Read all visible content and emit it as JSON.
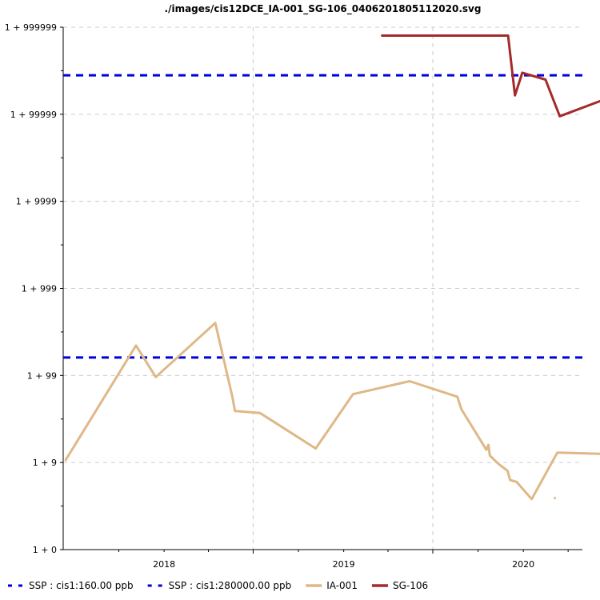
{
  "chart_data": {
    "type": "line",
    "title": "./images/cis12DCE_IA-001_SG-106_0406201805112020.svg",
    "xlabel": "",
    "ylabel": "",
    "xlim": [
      "2017-06-10",
      "2020-04-30"
    ],
    "x_ticks": [
      {
        "value": "2018-01-01",
        "label": "2018"
      },
      {
        "value": "2019-01-01",
        "label": "2019"
      },
      {
        "value": "2020-01-01",
        "label": "2020"
      }
    ],
    "yscale": "log10(1+y)",
    "ylim": [
      0,
      6
    ],
    "y_ticks": [
      {
        "value": 0,
        "label": "1 + 0"
      },
      {
        "value": 1,
        "label": "1 + 9"
      },
      {
        "value": 2,
        "label": "1 + 99"
      },
      {
        "value": 3,
        "label": "1 + 999"
      },
      {
        "value": 4,
        "label": "1 + 9999"
      },
      {
        "value": 5,
        "label": "1 + 99999"
      },
      {
        "value": 6,
        "label": "1 + 999999"
      }
    ],
    "grid": true,
    "legend_position": "bottom",
    "series": [
      {
        "name": "SSP : cis1:160.00 ppb",
        "type": "hline",
        "value": 160,
        "color": "#0000dd",
        "dash": "long-dash"
      },
      {
        "name": "SSP : cis1:280000.00 ppb",
        "type": "hline",
        "value": 280000,
        "color": "#0000dd",
        "dash": "long-dash"
      },
      {
        "name": "IA-001",
        "type": "line",
        "color": "#deb887",
        "points": [
          {
            "x": "2017-06-15",
            "y": 9.7
          },
          {
            "x": "2017-11-05",
            "y": 220
          },
          {
            "x": "2017-12-15",
            "y": 95
          },
          {
            "x": "2018-04-15",
            "y": 400
          },
          {
            "x": "2018-05-20",
            "y": 55
          },
          {
            "x": "2018-05-25",
            "y": 38
          },
          {
            "x": "2018-07-15",
            "y": 36
          },
          {
            "x": "2018-11-05",
            "y": 13.5
          },
          {
            "x": "2019-01-20",
            "y": 60
          },
          {
            "x": "2019-05-15",
            "y": 85
          },
          {
            "x": "2019-08-20",
            "y": 56
          },
          {
            "x": "2019-08-28",
            "y": 40
          },
          {
            "x": "2019-10-18",
            "y": 13
          },
          {
            "x": "2019-10-22",
            "y": 15
          },
          {
            "x": "2019-10-25",
            "y": 11
          },
          {
            "x": "2019-11-10",
            "y": 8.8
          },
          {
            "x": "2019-11-30",
            "y": 7
          },
          {
            "x": "2019-12-05",
            "y": 5.3
          },
          {
            "x": "2019-12-18",
            "y": 5
          },
          {
            "x": "2020-01-18",
            "y": 2.8
          },
          {
            "x": "2020-03-10",
            "y": 12
          },
          {
            "x": "2020-06-30",
            "y": 11.5
          }
        ],
        "isolated_points": [
          {
            "x": "2020-03-05",
            "y": 2.9
          }
        ]
      },
      {
        "name": "SG-106",
        "type": "line",
        "color": "#a52a2a",
        "points": [
          {
            "x": "2019-03-20",
            "y": 800000
          },
          {
            "x": "2019-12-01",
            "y": 800000
          },
          {
            "x": "2019-12-15",
            "y": 165000
          },
          {
            "x": "2019-12-30",
            "y": 300000
          },
          {
            "x": "2020-02-15",
            "y": 250000
          },
          {
            "x": "2020-03-15",
            "y": 95000
          },
          {
            "x": "2020-06-30",
            "y": 160000
          }
        ]
      }
    ]
  }
}
